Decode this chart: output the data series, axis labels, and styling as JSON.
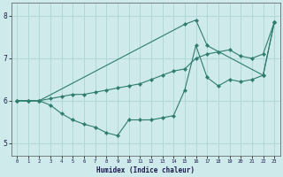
{
  "xlabel": "Humidex (Indice chaleur)",
  "bg_color": "#ceeaea",
  "grid_color": "#b0d8d8",
  "line_color": "#2e7d6e",
  "xlim": [
    -0.5,
    23.5
  ],
  "ylim": [
    4.7,
    8.3
  ],
  "yticks": [
    5,
    6,
    7,
    8
  ],
  "xticks": [
    0,
    1,
    2,
    3,
    4,
    5,
    6,
    7,
    8,
    9,
    10,
    11,
    12,
    13,
    14,
    15,
    16,
    17,
    18,
    19,
    20,
    21,
    22,
    23
  ],
  "line1_x": [
    0,
    1,
    2,
    3,
    4,
    5,
    6,
    7,
    8,
    9,
    10,
    11,
    12,
    13,
    14,
    15,
    16,
    17,
    18,
    19,
    20,
    21,
    22,
    23
  ],
  "line1_y": [
    6.0,
    6.0,
    6.0,
    6.05,
    6.1,
    6.15,
    6.15,
    6.2,
    6.25,
    6.3,
    6.35,
    6.4,
    6.5,
    6.6,
    6.7,
    6.75,
    7.0,
    7.1,
    7.15,
    7.2,
    7.05,
    7.0,
    7.1,
    7.85
  ],
  "line2_x": [
    0,
    1,
    2,
    3,
    4,
    5,
    6,
    7,
    8,
    9,
    10,
    11,
    12,
    13,
    14,
    15,
    16,
    17,
    18,
    19,
    20,
    21,
    22,
    23
  ],
  "line2_y": [
    6.0,
    6.0,
    6.0,
    5.9,
    5.7,
    5.55,
    5.45,
    5.38,
    5.25,
    5.18,
    5.55,
    5.55,
    5.55,
    5.6,
    5.65,
    6.25,
    7.3,
    6.55,
    6.35,
    6.5,
    6.45,
    6.5,
    6.6,
    7.85
  ],
  "line3_x": [
    0,
    2,
    15,
    16,
    17,
    22,
    23
  ],
  "line3_y": [
    6.0,
    6.0,
    7.8,
    7.9,
    7.3,
    6.6,
    7.85
  ]
}
